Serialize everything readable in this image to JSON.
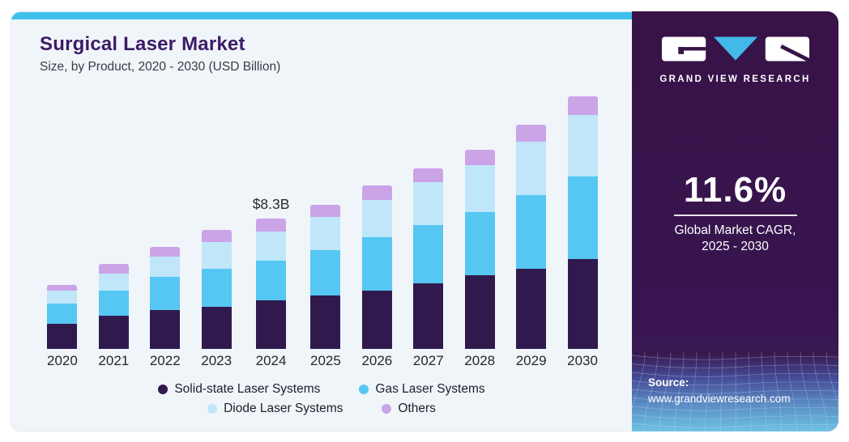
{
  "header": {
    "title": "Surgical Laser Market",
    "subtitle": "Size, by Product, 2020 - 2030 (USD Billion)"
  },
  "brand": {
    "name": "GRAND VIEW RESEARCH"
  },
  "stats": {
    "cagr_value": "11.6%",
    "cagr_label_line1": "Global Market CAGR,",
    "cagr_label_line2": "2025 - 2030"
  },
  "source": {
    "label": "Source:",
    "url": "www.grandviewresearch.com"
  },
  "colors": {
    "accent_strip": "#3fc0ec",
    "chart_bg": "#f0f5fa",
    "panel_bg": "#371347",
    "title_text": "#3c1b66",
    "body_text": "#2b2b2b",
    "solid_state": "#301a4d",
    "gas": "#55c7f2",
    "diode": "#c0e6fa",
    "others": "#cba4e8",
    "logo_triangle": "#42b9e9"
  },
  "chart_data": {
    "type": "bar",
    "stacked": true,
    "title": "Surgical Laser Market",
    "subtitle": "Size, by Product, 2020 - 2030 (USD Billion)",
    "unit": "USD Billion",
    "xlabel": "",
    "ylabel": "",
    "axis_style": "no y-axis, no gridlines, year ticks only",
    "categories": [
      "2020",
      "2021",
      "2022",
      "2023",
      "2024",
      "2025",
      "2026",
      "2027",
      "2028",
      "2029",
      "2030"
    ],
    "series": [
      {
        "name": "Solid-state Laser Systems",
        "color": "#301a4d",
        "values": [
          1.6,
          2.1,
          2.5,
          2.7,
          3.1,
          3.4,
          3.7,
          4.2,
          4.7,
          5.1,
          5.7
        ]
      },
      {
        "name": "Gas Laser Systems",
        "color": "#55c7f2",
        "values": [
          1.3,
          1.6,
          2.1,
          2.4,
          2.5,
          2.9,
          3.4,
          3.7,
          4.0,
          4.7,
          5.3
        ]
      },
      {
        "name": "Diode Laser Systems",
        "color": "#c0e6fa",
        "values": [
          0.8,
          1.1,
          1.3,
          1.7,
          1.9,
          2.1,
          2.4,
          2.7,
          3.0,
          3.4,
          3.9
        ]
      },
      {
        "name": "Others",
        "color": "#cba4e8",
        "values": [
          0.4,
          0.6,
          0.6,
          0.8,
          0.8,
          0.8,
          0.9,
          0.9,
          1.0,
          1.1,
          1.2
        ]
      }
    ],
    "totals_estimated": [
      4.1,
      5.4,
      6.5,
      7.6,
      8.3,
      9.2,
      10.4,
      11.5,
      12.7,
      14.3,
      16.1
    ],
    "annotation": {
      "category": "2024",
      "text": "$8.3B"
    },
    "legend_rows": [
      [
        "Solid-state Laser Systems",
        "Gas Laser Systems"
      ],
      [
        "Diode Laser Systems",
        "Others"
      ]
    ],
    "legend_position": "bottom-center"
  }
}
